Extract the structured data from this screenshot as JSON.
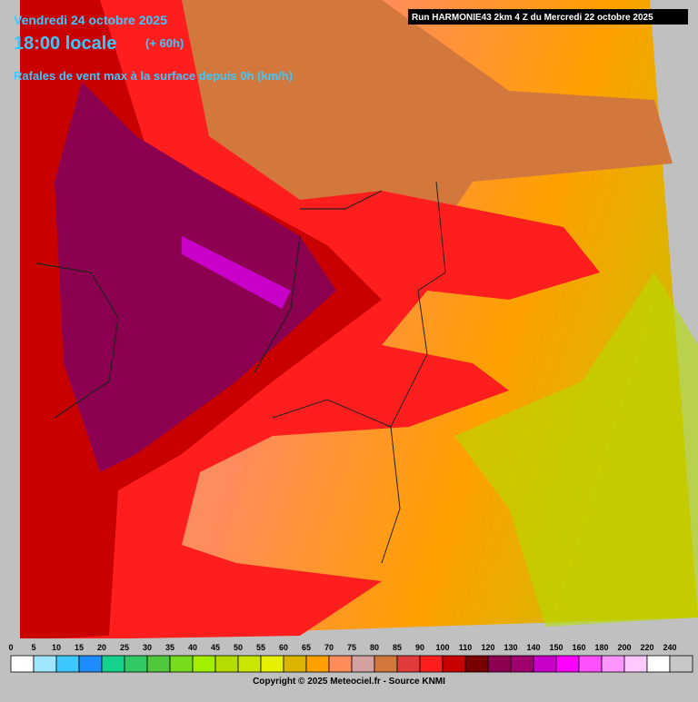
{
  "header": {
    "date": "Vendredi 24 octobre 2025",
    "time": "18:00 locale",
    "lead": "(+ 60h)",
    "title": "Rafales de vent max à la surface depuis 0h (km/h)",
    "run": "Run HARMONIE43 2km 4 Z du Mercredi 22 octobre 2025"
  },
  "legend": {
    "ticks": [
      0,
      5,
      10,
      15,
      20,
      25,
      30,
      35,
      40,
      45,
      50,
      55,
      60,
      65,
      70,
      75,
      80,
      85,
      90,
      100,
      110,
      120,
      130,
      140,
      150,
      160,
      180,
      200,
      220,
      240
    ],
    "colors": [
      "#ffffff",
      "#a0e6ff",
      "#3cc8ff",
      "#1e8cff",
      "#14d28c",
      "#32c864",
      "#50c83c",
      "#78dc1e",
      "#a0f000",
      "#b4dc00",
      "#c8e600",
      "#e6f000",
      "#dcb400",
      "#ffa000",
      "#ff8c5a",
      "#d2a0a0",
      "#d2783c",
      "#e03c3c",
      "#ff1e1e",
      "#c80000",
      "#780000",
      "#8c0050",
      "#a0006e",
      "#c800c8",
      "#ff00ff",
      "#ff50ff",
      "#ff96ff",
      "#ffc8ff",
      "#ffffff",
      "#c8c8c8"
    ]
  },
  "footer": "Copyright © 2025 Meteociel.fr - Source KNMI"
}
